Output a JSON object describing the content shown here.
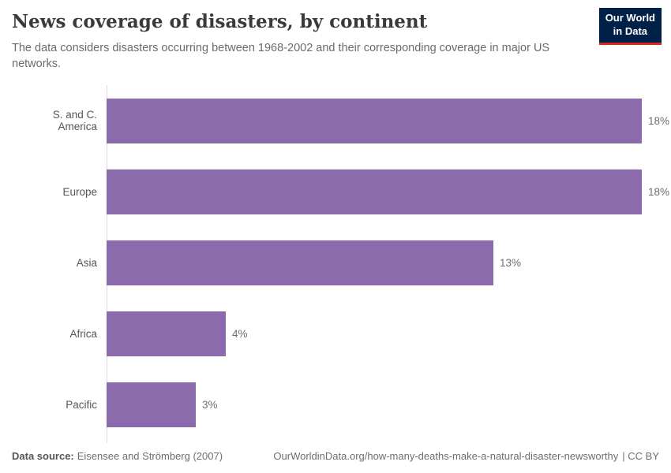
{
  "header": {
    "title": "News coverage of disasters, by continent",
    "subtitle": "The data considers disasters occurring between 1968-2002 and their corresponding coverage in major US networks.",
    "logo": {
      "line1": "Our World",
      "line2": "in Data"
    }
  },
  "chart_data": {
    "type": "bar",
    "orientation": "horizontal",
    "title": "News coverage of disasters, by continent",
    "categories": [
      "S. and C. America",
      "Europe",
      "Asia",
      "Africa",
      "Pacific"
    ],
    "values": [
      18,
      18,
      13,
      4,
      3
    ],
    "value_labels": [
      "18%",
      "18%",
      "13%",
      "4%",
      "3%"
    ],
    "unit": "%",
    "xlabel": "",
    "ylabel": "",
    "xlim": [
      0,
      18
    ],
    "grid": false,
    "legend": false,
    "bar_color": "#8C6BAD"
  },
  "footer": {
    "datasource_label": "Data source:",
    "datasource_value": "Eisensee and Strömberg (2007)",
    "link_text": "OurWorldinData.org/how-many-deaths-make-a-natural-disaster-newsworthy",
    "license_text": "| CC BY"
  },
  "colors": {
    "bar": "#8C6BAD",
    "logo_background": "#002147",
    "logo_accent": "#d8281f",
    "title_text": "#3a3a3a",
    "subtitle_text": "#6b6b6b",
    "axis_line": "#dcdcdc"
  }
}
